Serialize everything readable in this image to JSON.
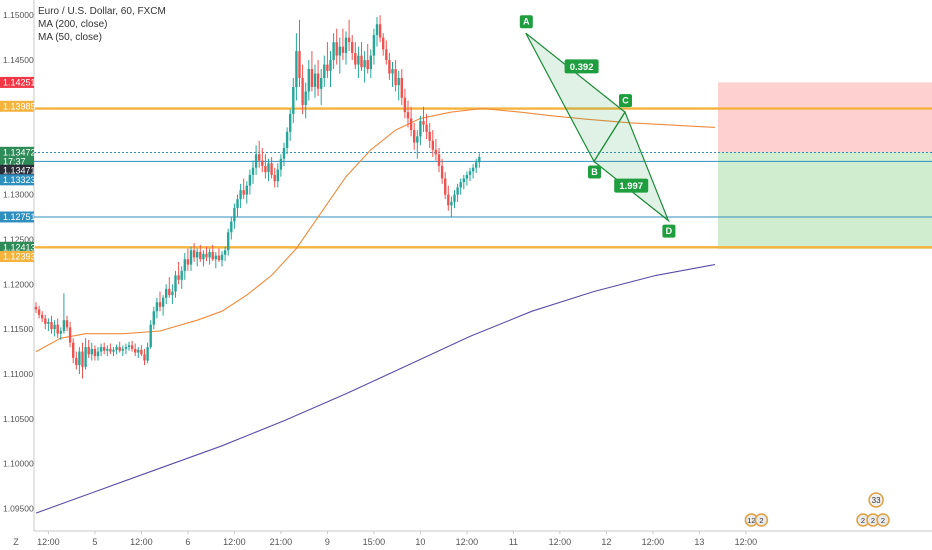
{
  "chart_data": {
    "type": "candlestick",
    "title": "Euro / U.S. Dollar, 60, FXCM",
    "indicators": [
      {
        "name": "MA (200, close)",
        "color": "#5b4ea8"
      },
      {
        "name": "MA (50, close)",
        "color": "#f08a3c"
      }
    ],
    "ylim": [
      1.0925,
      1.1517
    ],
    "y_ticks": [
      "1.15000",
      "1.14500",
      "1.14000",
      "1.13500",
      "1.13000",
      "1.12500",
      "1.12000",
      "1.11500",
      "1.11000",
      "1.10500",
      "1.10000",
      "1.09500"
    ],
    "y_tick_values": [
      1.15,
      1.145,
      1.14,
      1.135,
      1.13,
      1.125,
      1.12,
      1.115,
      1.11,
      1.105,
      1.1,
      1.095
    ],
    "x_ticks": [
      "12:00",
      "5",
      "12:00",
      "6",
      "12:00",
      "21:00",
      "9",
      "15:00",
      "10",
      "12:00",
      "11",
      "12:00",
      "12",
      "12:00",
      "13",
      "12:00"
    ],
    "x_tick_index": [
      4,
      19,
      34,
      49,
      64,
      79,
      94,
      109,
      124,
      139,
      154,
      169,
      184,
      199,
      214,
      229
    ],
    "candles": [
      [
        1.1175,
        1.118,
        1.1168,
        1.1172
      ],
      [
        1.1172,
        1.1176,
        1.1162,
        1.1166
      ],
      [
        1.1166,
        1.117,
        1.1158,
        1.1162
      ],
      [
        1.1162,
        1.1166,
        1.115,
        1.1156
      ],
      [
        1.1156,
        1.1162,
        1.1148,
        1.1158
      ],
      [
        1.1158,
        1.1165,
        1.1145,
        1.115
      ],
      [
        1.115,
        1.116,
        1.1142,
        1.1155
      ],
      [
        1.1155,
        1.1162,
        1.114,
        1.1145
      ],
      [
        1.1145,
        1.1152,
        1.1138,
        1.1148
      ],
      [
        1.1148,
        1.119,
        1.1145,
        1.116
      ],
      [
        1.116,
        1.1165,
        1.1148,
        1.1152
      ],
      [
        1.1152,
        1.1158,
        1.113,
        1.1135
      ],
      [
        1.1135,
        1.114,
        1.1112,
        1.1118
      ],
      [
        1.1118,
        1.1125,
        1.1105,
        1.111
      ],
      [
        1.111,
        1.113,
        1.11,
        1.1125
      ],
      [
        1.1125,
        1.1135,
        1.1095,
        1.1108
      ],
      [
        1.1108,
        1.114,
        1.1105,
        1.113
      ],
      [
        1.113,
        1.1138,
        1.1118,
        1.1122
      ],
      [
        1.1122,
        1.1135,
        1.1115,
        1.1128
      ],
      [
        1.1128,
        1.1132,
        1.1115,
        1.112
      ],
      [
        1.112,
        1.113,
        1.1115,
        1.1125
      ],
      [
        1.1125,
        1.1134,
        1.112,
        1.113
      ],
      [
        1.113,
        1.1135,
        1.1122,
        1.1126
      ],
      [
        1.1126,
        1.1132,
        1.112,
        1.1128
      ],
      [
        1.1128,
        1.1134,
        1.1122,
        1.1125
      ],
      [
        1.1125,
        1.113,
        1.112,
        1.1127
      ],
      [
        1.1127,
        1.1133,
        1.1122,
        1.113
      ],
      [
        1.113,
        1.1136,
        1.1124,
        1.1126
      ],
      [
        1.1126,
        1.1132,
        1.112,
        1.1128
      ],
      [
        1.1128,
        1.1134,
        1.1122,
        1.113
      ],
      [
        1.113,
        1.1136,
        1.1126,
        1.1132
      ],
      [
        1.1132,
        1.1137,
        1.1125,
        1.1128
      ],
      [
        1.1128,
        1.1134,
        1.112,
        1.1124
      ],
      [
        1.1124,
        1.113,
        1.1118,
        1.1127
      ],
      [
        1.1127,
        1.1132,
        1.112,
        1.1122
      ],
      [
        1.1122,
        1.1128,
        1.111,
        1.1115
      ],
      [
        1.1115,
        1.1135,
        1.1112,
        1.113
      ],
      [
        1.113,
        1.116,
        1.1128,
        1.1155
      ],
      [
        1.1155,
        1.1175,
        1.115,
        1.117
      ],
      [
        1.117,
        1.1185,
        1.1162,
        1.118
      ],
      [
        1.118,
        1.1192,
        1.117,
        1.1175
      ],
      [
        1.1175,
        1.1188,
        1.1165,
        1.1185
      ],
      [
        1.1185,
        1.12,
        1.1178,
        1.1195
      ],
      [
        1.1195,
        1.1208,
        1.1185,
        1.1188
      ],
      [
        1.1188,
        1.12,
        1.1178,
        1.1192
      ],
      [
        1.1192,
        1.1215,
        1.1185,
        1.121
      ],
      [
        1.121,
        1.1225,
        1.12,
        1.1205
      ],
      [
        1.1205,
        1.122,
        1.1195,
        1.1215
      ],
      [
        1.1215,
        1.1235,
        1.1205,
        1.1228
      ],
      [
        1.1228,
        1.124,
        1.1215,
        1.1222
      ],
      [
        1.1222,
        1.1242,
        1.1215,
        1.1238
      ],
      [
        1.1238,
        1.1246,
        1.1225,
        1.123
      ],
      [
        1.123,
        1.124,
        1.122,
        1.1236
      ],
      [
        1.1236,
        1.1244,
        1.1225,
        1.1228
      ],
      [
        1.1228,
        1.1238,
        1.122,
        1.1234
      ],
      [
        1.1234,
        1.1242,
        1.1226,
        1.123
      ],
      [
        1.123,
        1.124,
        1.1222,
        1.1236
      ],
      [
        1.1236,
        1.1244,
        1.1226,
        1.1228
      ],
      [
        1.1228,
        1.1236,
        1.1218,
        1.1232
      ],
      [
        1.1232,
        1.124,
        1.1225,
        1.1227
      ],
      [
        1.1227,
        1.1237,
        1.122,
        1.1233
      ],
      [
        1.1233,
        1.1242,
        1.1226,
        1.1238
      ],
      [
        1.1238,
        1.1262,
        1.1232,
        1.1258
      ],
      [
        1.1258,
        1.1275,
        1.125,
        1.127
      ],
      [
        1.127,
        1.129,
        1.1262,
        1.1285
      ],
      [
        1.1285,
        1.13,
        1.1275,
        1.1295
      ],
      [
        1.1295,
        1.1312,
        1.1285,
        1.1305
      ],
      [
        1.1305,
        1.1318,
        1.1295,
        1.13
      ],
      [
        1.13,
        1.1315,
        1.129,
        1.131
      ],
      [
        1.131,
        1.1328,
        1.13,
        1.1322
      ],
      [
        1.1322,
        1.1338,
        1.1312,
        1.133
      ],
      [
        1.133,
        1.1355,
        1.1322,
        1.1345
      ],
      [
        1.1345,
        1.136,
        1.133,
        1.1338
      ],
      [
        1.1338,
        1.1352,
        1.1325,
        1.1332
      ],
      [
        1.1332,
        1.1345,
        1.1318,
        1.1325
      ],
      [
        1.1325,
        1.134,
        1.1315,
        1.1335
      ],
      [
        1.1335,
        1.1342,
        1.1318,
        1.1322
      ],
      [
        1.1322,
        1.133,
        1.1308,
        1.1315
      ],
      [
        1.1315,
        1.1335,
        1.1308,
        1.1328
      ],
      [
        1.1328,
        1.1345,
        1.132,
        1.134
      ],
      [
        1.134,
        1.1358,
        1.1332,
        1.1352
      ],
      [
        1.1352,
        1.1375,
        1.1345,
        1.137
      ],
      [
        1.137,
        1.1395,
        1.136,
        1.139
      ],
      [
        1.139,
        1.143,
        1.138,
        1.142
      ],
      [
        1.142,
        1.148,
        1.1405,
        1.146
      ],
      [
        1.146,
        1.1495,
        1.142,
        1.143
      ],
      [
        1.143,
        1.1445,
        1.139,
        1.14
      ],
      [
        1.14,
        1.1425,
        1.1385,
        1.1415
      ],
      [
        1.1415,
        1.145,
        1.1405,
        1.144
      ],
      [
        1.144,
        1.146,
        1.1415,
        1.142
      ],
      [
        1.142,
        1.1445,
        1.1408,
        1.1435
      ],
      [
        1.1435,
        1.145,
        1.141,
        1.1418
      ],
      [
        1.1418,
        1.144,
        1.14,
        1.143
      ],
      [
        1.143,
        1.1455,
        1.142,
        1.1445
      ],
      [
        1.1445,
        1.147,
        1.143,
        1.1438
      ],
      [
        1.1438,
        1.146,
        1.142,
        1.145
      ],
      [
        1.145,
        1.148,
        1.144,
        1.147
      ],
      [
        1.147,
        1.1485,
        1.1445,
        1.1455
      ],
      [
        1.1455,
        1.1475,
        1.1435,
        1.1465
      ],
      [
        1.1465,
        1.1485,
        1.145,
        1.1458
      ],
      [
        1.1458,
        1.1482,
        1.1445,
        1.1475
      ],
      [
        1.1475,
        1.1495,
        1.146,
        1.147
      ],
      [
        1.147,
        1.1478,
        1.145,
        1.1458
      ],
      [
        1.1458,
        1.147,
        1.144,
        1.1445
      ],
      [
        1.1445,
        1.1465,
        1.143,
        1.1455
      ],
      [
        1.1455,
        1.147,
        1.1438,
        1.1442
      ],
      [
        1.1442,
        1.146,
        1.1425,
        1.145
      ],
      [
        1.145,
        1.1468,
        1.1435,
        1.144
      ],
      [
        1.144,
        1.1462,
        1.143,
        1.1455
      ],
      [
        1.1455,
        1.1485,
        1.1445,
        1.1478
      ],
      [
        1.1478,
        1.1498,
        1.1465,
        1.149
      ],
      [
        1.149,
        1.15,
        1.147,
        1.1475
      ],
      [
        1.1475,
        1.148,
        1.1455,
        1.1462
      ],
      [
        1.1462,
        1.1472,
        1.1445,
        1.145
      ],
      [
        1.145,
        1.1458,
        1.1428,
        1.1435
      ],
      [
        1.1435,
        1.1448,
        1.142,
        1.144
      ],
      [
        1.144,
        1.145,
        1.1415,
        1.1422
      ],
      [
        1.1422,
        1.1438,
        1.1405,
        1.143
      ],
      [
        1.143,
        1.144,
        1.14,
        1.1408
      ],
      [
        1.1408,
        1.1418,
        1.1385,
        1.1392
      ],
      [
        1.1392,
        1.1405,
        1.1375,
        1.1385
      ],
      [
        1.1385,
        1.1398,
        1.1365,
        1.1372
      ],
      [
        1.1372,
        1.138,
        1.135,
        1.1358
      ],
      [
        1.1358,
        1.1372,
        1.134,
        1.1365
      ],
      [
        1.1365,
        1.1388,
        1.1355,
        1.1382
      ],
      [
        1.1382,
        1.1398,
        1.137,
        1.1378
      ],
      [
        1.1378,
        1.139,
        1.1362,
        1.137
      ],
      [
        1.137,
        1.138,
        1.1352,
        1.136
      ],
      [
        1.136,
        1.1372,
        1.1342,
        1.135
      ],
      [
        1.135,
        1.1362,
        1.1338,
        1.1345
      ],
      [
        1.1345,
        1.1352,
        1.1325,
        1.1332
      ],
      [
        1.1332,
        1.134,
        1.1312,
        1.1318
      ],
      [
        1.1318,
        1.1325,
        1.1295,
        1.13
      ],
      [
        1.13,
        1.131,
        1.1282,
        1.1288
      ],
      [
        1.1288,
        1.1298,
        1.1275,
        1.1292
      ],
      [
        1.1292,
        1.1305,
        1.1285,
        1.13
      ],
      [
        1.13,
        1.1312,
        1.1292,
        1.1308
      ],
      [
        1.1308,
        1.1318,
        1.13,
        1.1314
      ],
      [
        1.1314,
        1.1322,
        1.1306,
        1.1318
      ],
      [
        1.1318,
        1.1326,
        1.131,
        1.1322
      ],
      [
        1.1322,
        1.133,
        1.1315,
        1.1326
      ],
      [
        1.1326,
        1.1334,
        1.1318,
        1.133
      ],
      [
        1.133,
        1.134,
        1.1324,
        1.1336
      ],
      [
        1.1336,
        1.1346,
        1.133,
        1.1342
      ]
    ],
    "sma200": [
      [
        0,
        1.0945
      ],
      [
        20,
        1.097
      ],
      [
        40,
        1.0995
      ],
      [
        60,
        1.102
      ],
      [
        80,
        1.1048
      ],
      [
        100,
        1.1078
      ],
      [
        120,
        1.111
      ],
      [
        140,
        1.1142
      ],
      [
        160,
        1.117
      ],
      [
        180,
        1.1192
      ],
      [
        200,
        1.121
      ],
      [
        219,
        1.1222
      ]
    ],
    "sma50": [
      [
        0,
        1.1125
      ],
      [
        8,
        1.114
      ],
      [
        16,
        1.1145
      ],
      [
        28,
        1.1145
      ],
      [
        40,
        1.1148
      ],
      [
        52,
        1.116
      ],
      [
        60,
        1.117
      ],
      [
        68,
        1.1188
      ],
      [
        76,
        1.121
      ],
      [
        84,
        1.124
      ],
      [
        92,
        1.128
      ],
      [
        100,
        1.132
      ],
      [
        108,
        1.135
      ],
      [
        116,
        1.1372
      ],
      [
        124,
        1.1385
      ],
      [
        134,
        1.1392
      ],
      [
        144,
        1.1396
      ],
      [
        156,
        1.1392
      ],
      [
        166,
        1.1388
      ],
      [
        178,
        1.1384
      ],
      [
        192,
        1.138
      ],
      [
        219,
        1.1375
      ]
    ],
    "harmonic_points": [
      {
        "label": "A",
        "index": 158,
        "price": 1.148
      },
      {
        "label": "B",
        "index": 180,
        "price": 1.1337
      },
      {
        "label": "C",
        "index": 190,
        "price": 1.1392
      },
      {
        "label": "D",
        "index": 204,
        "price": 1.1271
      }
    ],
    "ratios": [
      {
        "label": "0.392",
        "index": 176,
        "price": 1.1443
      },
      {
        "label": "1.997",
        "index": 192,
        "price": 1.131
      }
    ],
    "horizontal_lines": [
      {
        "price": 1.1396,
        "color": "#f5b33e",
        "width": 2.4
      },
      {
        "price": 1.12413,
        "color": "#f5b33e",
        "width": 2.4
      },
      {
        "price": 1.1347,
        "color": "#2f8fbf",
        "width": 1,
        "dashed": true
      },
      {
        "price": 1.13371,
        "color": "#2f8fbf",
        "width": 1
      },
      {
        "price": 1.12751,
        "color": "#2f8fbf",
        "width": 1
      }
    ],
    "position": {
      "start_index": 220,
      "entry": 1.13472,
      "stop": 1.14251,
      "target": 1.12393,
      "stop_color": "rgba(255,120,120,0.35)",
      "target_color": "rgba(110,200,110,0.32)"
    },
    "price_labels": [
      {
        "text": "1.14251",
        "price": 1.14251,
        "color": "#f23645"
      },
      {
        "text": "1.13985",
        "price": 1.13985,
        "color": "#f5b33e"
      },
      {
        "text": "1.13472",
        "price": 1.13472,
        "color": "#2e8b57"
      },
      {
        "text": "17:37",
        "price": 1.13371,
        "color": "#2e8b57"
      },
      {
        "text": "1.13471",
        "price": 1.13271,
        "color": "#2a2e39"
      },
      {
        "text": "1.13323",
        "price": 1.13165,
        "color": "#2f8fbf"
      },
      {
        "text": "1.12751",
        "price": 1.12751,
        "color": "#2f8fbf"
      },
      {
        "text": "1.12413",
        "price": 1.12413,
        "color": "#2e8b57"
      },
      {
        "text": "1.12393",
        "price": 1.1231,
        "color": "#f5b33e"
      }
    ],
    "events": [
      {
        "index": 234,
        "labels": [
          "12",
          "2"
        ]
      },
      {
        "index": 270,
        "labels": [
          "2",
          "2",
          "2"
        ]
      },
      {
        "index": 271,
        "labels": [
          "33"
        ]
      }
    ],
    "up_color": "#26a69a",
    "down_color": "#ef5350"
  }
}
